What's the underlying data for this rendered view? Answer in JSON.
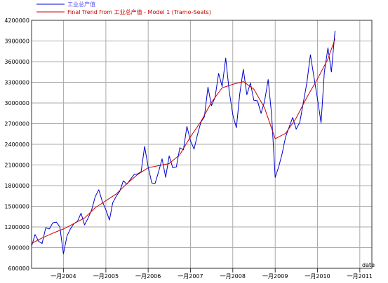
{
  "chart_data": {
    "type": "line",
    "xlabel": "date",
    "ylabel": "",
    "ylim": [
      600000,
      4200000
    ],
    "xlim": [
      "2003-04-01",
      "2011-04-15"
    ],
    "grid": true,
    "legend_placement": "top-left",
    "yticks": [
      "600000",
      "900000",
      "1200000",
      "1500000",
      "1800000",
      "2100000",
      "2400000",
      "2700000",
      "3000000",
      "3300000",
      "3600000",
      "3900000",
      "4200000"
    ],
    "xticks": [
      {
        "date": "2004-01-01",
        "label": "一月2004"
      },
      {
        "date": "2005-01-01",
        "label": "一月2005"
      },
      {
        "date": "2006-01-01",
        "label": "一月2006"
      },
      {
        "date": "2007-01-01",
        "label": "一月2007"
      },
      {
        "date": "2008-01-01",
        "label": "一月2008"
      },
      {
        "date": "2009-01-01",
        "label": "一月2009"
      },
      {
        "date": "2010-01-01",
        "label": "一月2010"
      },
      {
        "date": "2011-01-01",
        "label": "一月2011"
      }
    ],
    "series": [
      {
        "name": "工业总产值",
        "color": "#0000cc",
        "points": [
          [
            "2003-04-01",
            920000
          ],
          [
            "2003-05-01",
            1090000
          ],
          [
            "2003-06-01",
            990000
          ],
          [
            "2003-07-01",
            960000
          ],
          [
            "2003-08-01",
            1190000
          ],
          [
            "2003-09-01",
            1170000
          ],
          [
            "2003-10-01",
            1260000
          ],
          [
            "2003-11-01",
            1270000
          ],
          [
            "2003-12-01",
            1200000
          ],
          [
            "2004-01-01",
            810000
          ],
          [
            "2004-02-01",
            1070000
          ],
          [
            "2004-03-01",
            1170000
          ],
          [
            "2004-04-01",
            1250000
          ],
          [
            "2004-05-01",
            1280000
          ],
          [
            "2004-06-01",
            1400000
          ],
          [
            "2004-07-01",
            1230000
          ],
          [
            "2004-08-01",
            1330000
          ],
          [
            "2004-09-01",
            1450000
          ],
          [
            "2004-10-01",
            1640000
          ],
          [
            "2004-11-01",
            1740000
          ],
          [
            "2004-12-01",
            1570000
          ],
          [
            "2005-01-01",
            1450000
          ],
          [
            "2005-02-01",
            1300000
          ],
          [
            "2005-03-01",
            1550000
          ],
          [
            "2005-04-01",
            1650000
          ],
          [
            "2005-05-01",
            1720000
          ],
          [
            "2005-06-01",
            1870000
          ],
          [
            "2005-07-01",
            1820000
          ],
          [
            "2005-08-01",
            1890000
          ],
          [
            "2005-09-01",
            1960000
          ],
          [
            "2005-10-01",
            1970000
          ],
          [
            "2005-11-01",
            2000000
          ],
          [
            "2005-12-01",
            2370000
          ],
          [
            "2006-01-01",
            2070000
          ],
          [
            "2006-02-01",
            1840000
          ],
          [
            "2006-03-01",
            1830000
          ],
          [
            "2006-04-01",
            2000000
          ],
          [
            "2006-05-01",
            2190000
          ],
          [
            "2006-06-01",
            1920000
          ],
          [
            "2006-07-01",
            2230000
          ],
          [
            "2006-08-01",
            2060000
          ],
          [
            "2006-09-01",
            2070000
          ],
          [
            "2006-10-01",
            2350000
          ],
          [
            "2006-11-01",
            2320000
          ],
          [
            "2006-12-01",
            2660000
          ],
          [
            "2007-01-01",
            2450000
          ],
          [
            "2007-02-01",
            2330000
          ],
          [
            "2007-03-01",
            2530000
          ],
          [
            "2007-04-01",
            2720000
          ],
          [
            "2007-05-01",
            2800000
          ],
          [
            "2007-06-01",
            3230000
          ],
          [
            "2007-07-01",
            2960000
          ],
          [
            "2007-08-01",
            3080000
          ],
          [
            "2007-09-01",
            3430000
          ],
          [
            "2007-10-01",
            3240000
          ],
          [
            "2007-11-01",
            3650000
          ],
          [
            "2007-12-01",
            3170000
          ],
          [
            "2008-01-01",
            2830000
          ],
          [
            "2008-02-01",
            2640000
          ],
          [
            "2008-03-01",
            3130000
          ],
          [
            "2008-04-01",
            3490000
          ],
          [
            "2008-05-01",
            3120000
          ],
          [
            "2008-06-01",
            3290000
          ],
          [
            "2008-07-01",
            3040000
          ],
          [
            "2008-08-01",
            3030000
          ],
          [
            "2008-09-01",
            2850000
          ],
          [
            "2008-10-01",
            3020000
          ],
          [
            "2008-11-01",
            3340000
          ],
          [
            "2008-12-01",
            2830000
          ],
          [
            "2009-01-01",
            1920000
          ],
          [
            "2009-02-01",
            2080000
          ],
          [
            "2009-03-01",
            2260000
          ],
          [
            "2009-04-01",
            2510000
          ],
          [
            "2009-05-01",
            2650000
          ],
          [
            "2009-06-01",
            2790000
          ],
          [
            "2009-07-01",
            2620000
          ],
          [
            "2009-08-01",
            2720000
          ],
          [
            "2009-09-01",
            3010000
          ],
          [
            "2009-10-01",
            3290000
          ],
          [
            "2009-11-01",
            3700000
          ],
          [
            "2009-12-01",
            3380000
          ],
          [
            "2010-01-01",
            3060000
          ],
          [
            "2010-02-01",
            2710000
          ],
          [
            "2010-03-01",
            3450000
          ],
          [
            "2010-04-01",
            3800000
          ],
          [
            "2010-05-01",
            3450000
          ],
          [
            "2010-06-01",
            4050000
          ]
        ]
      },
      {
        "name": "Final Trend from 工业总产值 - Model 1 (Tramo-Seats)",
        "color": "#cc0000",
        "points": [
          [
            "2003-04-01",
            960000
          ],
          [
            "2003-07-01",
            1040000
          ],
          [
            "2003-10-01",
            1110000
          ],
          [
            "2004-01-01",
            1170000
          ],
          [
            "2004-04-01",
            1250000
          ],
          [
            "2004-07-01",
            1330000
          ],
          [
            "2004-10-01",
            1480000
          ],
          [
            "2005-01-01",
            1580000
          ],
          [
            "2005-04-01",
            1680000
          ],
          [
            "2005-07-01",
            1830000
          ],
          [
            "2005-10-01",
            1960000
          ],
          [
            "2006-01-01",
            2060000
          ],
          [
            "2006-04-01",
            2090000
          ],
          [
            "2006-07-01",
            2120000
          ],
          [
            "2006-10-01",
            2250000
          ],
          [
            "2007-01-01",
            2510000
          ],
          [
            "2007-04-01",
            2730000
          ],
          [
            "2007-07-01",
            3010000
          ],
          [
            "2007-10-01",
            3220000
          ],
          [
            "2008-01-01",
            3270000
          ],
          [
            "2008-04-01",
            3310000
          ],
          [
            "2008-07-01",
            3200000
          ],
          [
            "2008-10-01",
            2930000
          ],
          [
            "2009-01-01",
            2480000
          ],
          [
            "2009-04-01",
            2560000
          ],
          [
            "2009-07-01",
            2780000
          ],
          [
            "2009-10-01",
            3080000
          ],
          [
            "2010-01-01",
            3350000
          ],
          [
            "2010-04-01",
            3640000
          ],
          [
            "2010-06-01",
            3930000
          ]
        ]
      }
    ]
  }
}
